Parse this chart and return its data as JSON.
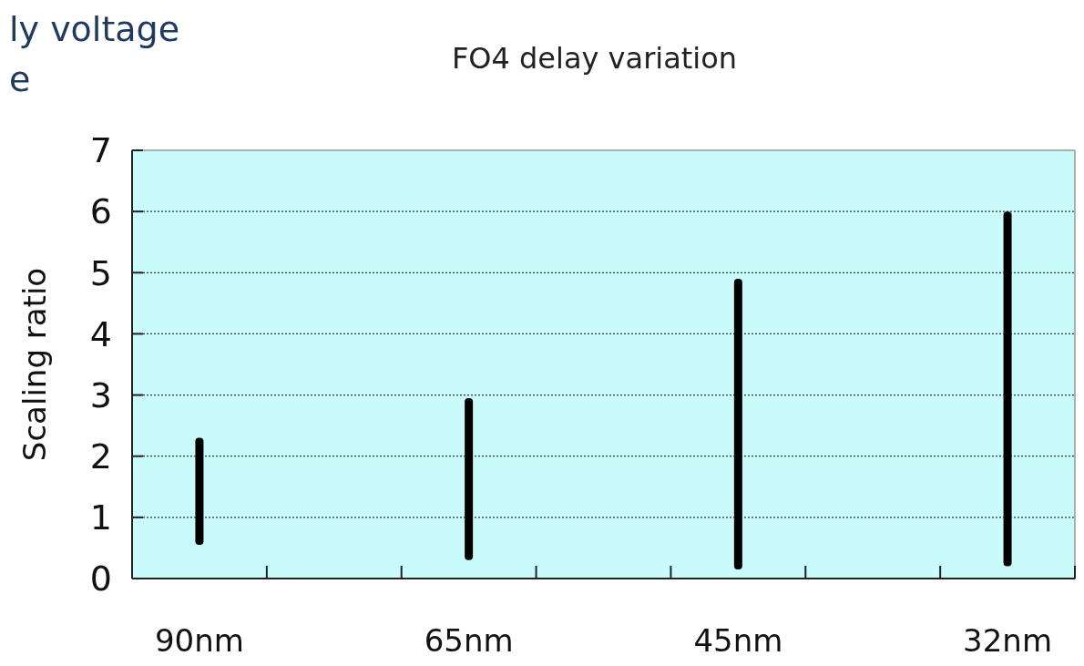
{
  "chart_data": {
    "type": "bar",
    "title": "FO4 delay variation",
    "ylabel": "Scaling ratio",
    "annotations": [
      "ly voltage",
      "e"
    ],
    "categories": [
      "90nm",
      null,
      "65nm",
      null,
      "45nm",
      null,
      "32nm"
    ],
    "base": [
      0.55,
      null,
      0.3,
      null,
      0.15,
      null,
      0.2
    ],
    "values": [
      1.75,
      null,
      2.65,
      null,
      4.75,
      null,
      5.8
    ],
    "color": "#000000",
    "ylim": [
      0,
      7
    ],
    "yticks": [
      0,
      1,
      2,
      3,
      4,
      5,
      6,
      7
    ],
    "grid": "y",
    "line_style": "dotted"
  }
}
